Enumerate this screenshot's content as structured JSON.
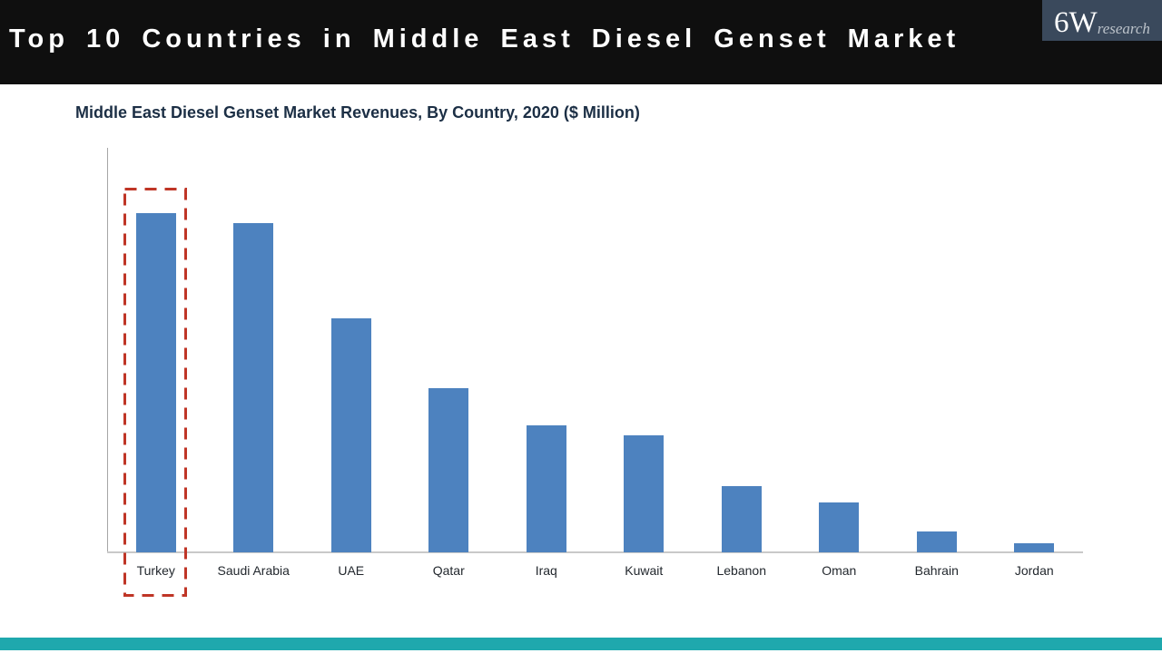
{
  "header": {
    "title": "Top 10 Countries in Middle East Diesel Genset Market",
    "logo": {
      "main": "6W",
      "sub": "research"
    }
  },
  "chart": {
    "title": "Middle East Diesel Genset Market Revenues, By Country, 2020 ($ Million)"
  },
  "chart_data": {
    "type": "bar",
    "title": "Middle East Diesel Genset Market Revenues, By Country, 2020 ($ Million)",
    "categories": [
      "Turkey",
      "Saudi Arabia",
      "UAE",
      "Qatar",
      "Iraq",
      "Kuwait",
      "Lebanon",
      "Oman",
      "Bahrain",
      "Jordan"
    ],
    "values": [
      374,
      363,
      258,
      181,
      140,
      129,
      73,
      55,
      23,
      10
    ],
    "note": "Y-axis has no tick labels or gridlines; values are relative units estimated from bar heights",
    "xlabel": "",
    "ylabel": "",
    "ylim": [
      0,
      446
    ],
    "grid": false,
    "legend": false,
    "bar_color": "#4d82bf",
    "highlight": {
      "category": "Turkey",
      "style": "red-dashed-outline",
      "color": "#bf3526"
    }
  },
  "colors": {
    "header_bg": "#0f0f0f",
    "header_text": "#ffffff",
    "logo_bg": "#3a495c",
    "chart_title_text": "#1c2f45",
    "bar_fill": "#4d82bf",
    "highlight_red": "#bf3526",
    "axis_gray": "#a6a6a6",
    "baseline_gray": "#c9c9c9",
    "footer_accent": "#1fa8ad"
  }
}
